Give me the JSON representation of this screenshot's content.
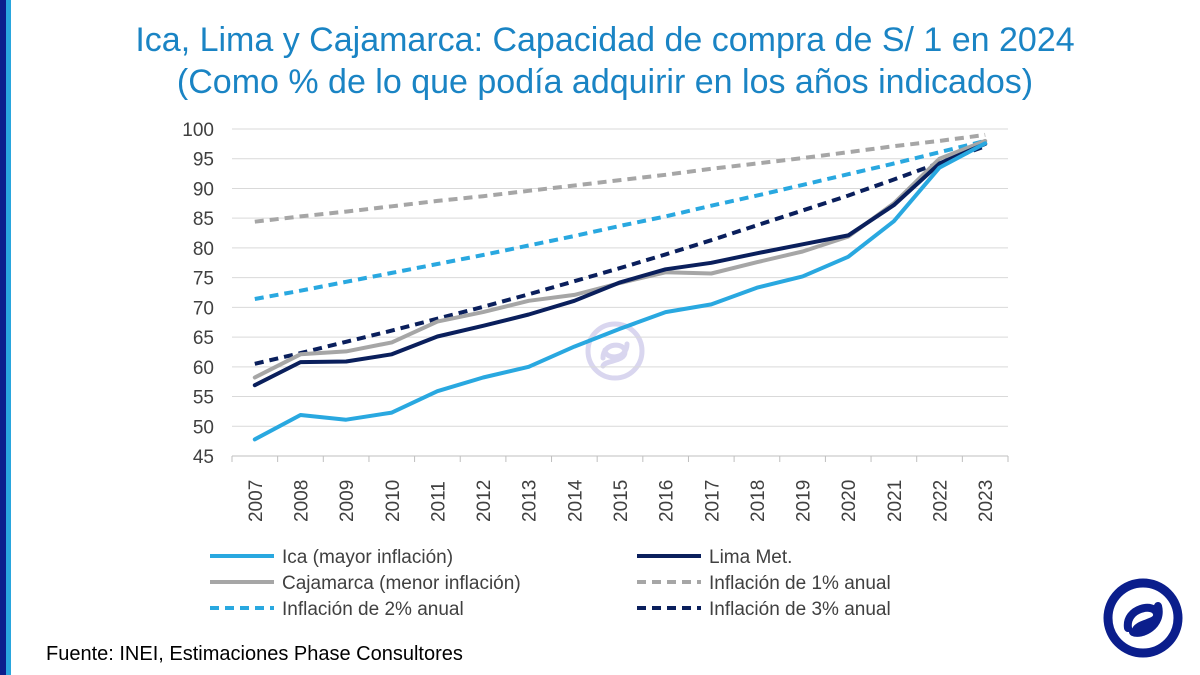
{
  "title_line1": "Ica, Lima y Cajamarca: Capacidad de compra de S/ 1 en 2024",
  "title_line2": "(Como % de lo que podía adquirir en los años indicados)",
  "source": "Fuente: INEI, Estimaciones Phase Consultores",
  "colors": {
    "title": "#1a84c4",
    "stripe_dark": "#0b1e8c",
    "stripe_light": "#29a6de",
    "logo": "#0b1e8c"
  },
  "icons": {
    "logo": "phase-logo-icon",
    "watermark": "phase-watermark-icon"
  },
  "chart_data": {
    "type": "line",
    "x": [
      "2007",
      "2008",
      "2009",
      "2010",
      "2011",
      "2012",
      "2013",
      "2014",
      "2015",
      "2016",
      "2017",
      "2018",
      "2019",
      "2020",
      "2021",
      "2022",
      "2023"
    ],
    "ylim": [
      45,
      100
    ],
    "yticks": [
      45,
      50,
      55,
      60,
      65,
      70,
      75,
      80,
      85,
      90,
      95,
      100
    ],
    "grid": true,
    "legend_position": "bottom",
    "series": [
      {
        "name": "Ica (mayor inflación)",
        "color": "#29a8e0",
        "dash": "solid",
        "values": [
          47.8,
          51.9,
          51.1,
          52.3,
          55.9,
          58.2,
          60.0,
          63.4,
          66.4,
          69.2,
          70.5,
          73.3,
          75.2,
          78.5,
          84.5,
          93.5,
          97.6
        ]
      },
      {
        "name": "Lima Met.",
        "color": "#0a1f5c",
        "dash": "solid",
        "values": [
          56.9,
          60.8,
          60.9,
          62.1,
          65.1,
          66.9,
          68.8,
          71.1,
          74.2,
          76.4,
          77.5,
          79.1,
          80.6,
          82.1,
          87.2,
          94.2,
          97.5
        ]
      },
      {
        "name": "Cajamarca (menor inflación)",
        "color": "#a6a6a6",
        "dash": "solid",
        "values": [
          58.2,
          62.1,
          62.6,
          64.1,
          67.6,
          69.2,
          71.1,
          72.1,
          74.1,
          75.9,
          75.7,
          77.6,
          79.4,
          81.9,
          87.5,
          95.0,
          98.0
        ]
      },
      {
        "name": "Inflación de 1% anual",
        "color": "#a6a6a6",
        "dash": "dashed",
        "values": [
          84.4,
          85.3,
          86.1,
          87.0,
          87.9,
          88.7,
          89.6,
          90.5,
          91.4,
          92.3,
          93.3,
          94.2,
          95.1,
          96.1,
          97.1,
          98.0,
          99.0
        ]
      },
      {
        "name": "Inflación de 2% anual",
        "color": "#29a8e0",
        "dash": "dashed",
        "values": [
          71.4,
          72.8,
          74.3,
          75.8,
          77.3,
          78.8,
          80.4,
          82.0,
          83.7,
          85.3,
          87.1,
          88.8,
          90.6,
          92.4,
          94.2,
          96.1,
          98.0
        ]
      },
      {
        "name": "Inflación de 3% anual",
        "color": "#0a1f5c",
        "dash": "dashed",
        "values": [
          60.5,
          62.3,
          64.2,
          66.1,
          68.1,
          70.1,
          72.2,
          74.4,
          76.6,
          78.9,
          81.3,
          83.8,
          86.3,
          88.8,
          91.5,
          94.3,
          97.1
        ]
      }
    ]
  }
}
